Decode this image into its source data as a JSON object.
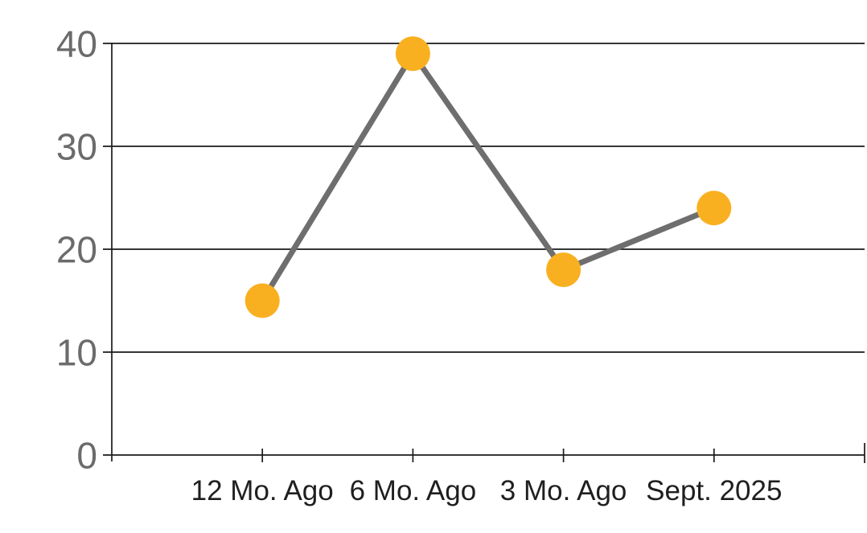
{
  "chart_data": {
    "type": "line",
    "title": "",
    "xlabel": "",
    "ylabel": "",
    "categories": [
      "12 Mo. Ago",
      "6 Mo. Ago",
      "3 Mo. Ago",
      "Sept. 2025"
    ],
    "series": [
      {
        "name": "series-1",
        "values": [
          15,
          39,
          18,
          24
        ]
      }
    ],
    "ylim": [
      0,
      40
    ],
    "yticks": [
      0,
      10,
      20,
      30,
      40
    ],
    "grid": true,
    "legend": false,
    "legend_position": "none",
    "colors": {
      "background": "#ffffff",
      "line": "#6e6e6e",
      "marker": "#f9b020",
      "axis": "#1a1a1a",
      "y_tick_label": "#6b6b6b",
      "x_tick_label": "#1f1f1f"
    }
  }
}
